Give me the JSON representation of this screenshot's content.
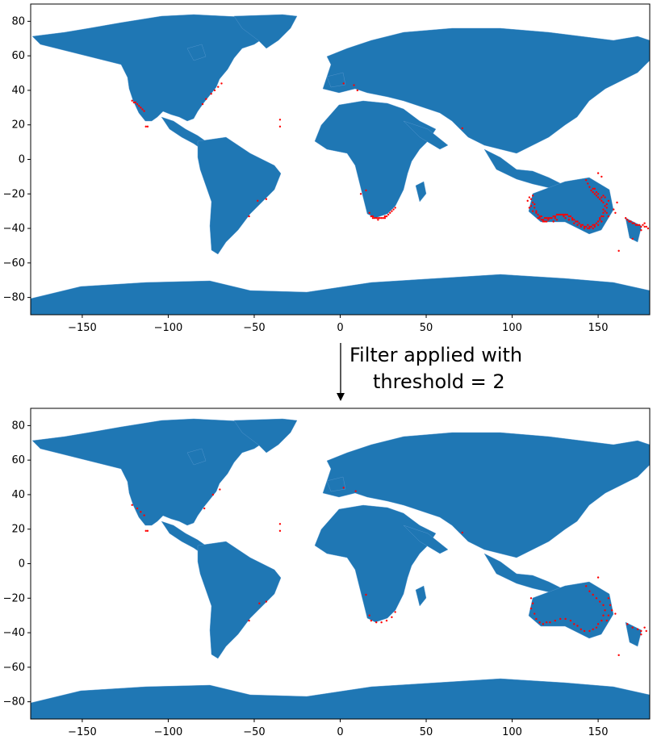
{
  "colors": {
    "land": "#1f77b4",
    "points": "#ff0000",
    "frame": "#000000"
  },
  "annotation": {
    "line1": "Filter applied with",
    "line2": "threshold = 2"
  },
  "chart_data": [
    {
      "type": "scatter",
      "title": "",
      "xlabel": "",
      "ylabel": "",
      "xlim": [
        -180,
        180
      ],
      "ylim": [
        -90,
        90
      ],
      "x_ticks": [
        "−150",
        "−100",
        "−50",
        "0",
        "50",
        "100",
        "150"
      ],
      "y_ticks": [
        "80",
        "60",
        "40",
        "20",
        "0",
        "−20",
        "−40",
        "−60",
        "−80"
      ],
      "series": [
        {
          "points": [
            [
              -121,
              34
            ],
            [
              -120,
              33
            ],
            [
              -119,
              33
            ],
            [
              -118,
              32
            ],
            [
              -117,
              31
            ],
            [
              -116,
              30
            ],
            [
              -115,
              29
            ],
            [
              -114,
              28
            ],
            [
              -113,
              19
            ],
            [
              -112,
              19
            ],
            [
              -80,
              32
            ],
            [
              -78,
              35
            ],
            [
              -75,
              38
            ],
            [
              -73,
              40
            ],
            [
              -71,
              42
            ],
            [
              -69,
              44
            ],
            [
              -35,
              23
            ],
            [
              -35,
              19
            ],
            [
              -48,
              -24
            ],
            [
              -43,
              -23
            ],
            [
              -53,
              -33
            ],
            [
              2,
              44
            ],
            [
              8,
              43
            ],
            [
              10,
              40
            ],
            [
              71,
              18
            ],
            [
              15,
              -18
            ],
            [
              12,
              -20
            ],
            [
              17,
              -31
            ],
            [
              18,
              -33
            ],
            [
              19,
              -34
            ],
            [
              20,
              -34
            ],
            [
              21,
              -34
            ],
            [
              22,
              -34
            ],
            [
              23,
              -34
            ],
            [
              24,
              -34
            ],
            [
              25,
              -34
            ],
            [
              26,
              -33
            ],
            [
              27,
              -33
            ],
            [
              28,
              -32
            ],
            [
              29,
              -31
            ],
            [
              30,
              -30
            ],
            [
              31,
              -29
            ],
            [
              32,
              -28
            ],
            [
              19,
              -33
            ],
            [
              22,
              -35
            ],
            [
              26,
              -34
            ],
            [
              150,
              -8
            ],
            [
              152,
              -10
            ],
            [
              161,
              -25
            ],
            [
              159,
              -29
            ],
            [
              160,
              -31
            ],
            [
              156,
              -33
            ],
            [
              110,
              -22
            ],
            [
              112,
              -25
            ],
            [
              113,
              -28
            ],
            [
              114,
              -30
            ],
            [
              115,
              -32
            ],
            [
              116,
              -34
            ],
            [
              117,
              -35
            ],
            [
              118,
              -35
            ],
            [
              119,
              -34
            ],
            [
              120,
              -34
            ],
            [
              121,
              -34
            ],
            [
              122,
              -34
            ],
            [
              123,
              -34
            ],
            [
              124,
              -33
            ],
            [
              125,
              -33
            ],
            [
              126,
              -32
            ],
            [
              127,
              -32
            ],
            [
              128,
              -32
            ],
            [
              129,
              -32
            ],
            [
              130,
              -32
            ],
            [
              131,
              -32
            ],
            [
              132,
              -32
            ],
            [
              133,
              -33
            ],
            [
              134,
              -33
            ],
            [
              135,
              -34
            ],
            [
              136,
              -35
            ],
            [
              137,
              -36
            ],
            [
              138,
              -36
            ],
            [
              139,
              -37
            ],
            [
              140,
              -38
            ],
            [
              141,
              -38
            ],
            [
              142,
              -39
            ],
            [
              143,
              -39
            ],
            [
              144,
              -38
            ],
            [
              145,
              -39
            ],
            [
              146,
              -39
            ],
            [
              147,
              -38
            ],
            [
              148,
              -38
            ],
            [
              149,
              -37
            ],
            [
              150,
              -36
            ],
            [
              151,
              -34
            ],
            [
              152,
              -33
            ],
            [
              153,
              -31
            ],
            [
              153,
              -29
            ],
            [
              154,
              -27
            ],
            [
              153,
              -25
            ],
            [
              152,
              -24
            ],
            [
              151,
              -23
            ],
            [
              150,
              -22
            ],
            [
              149,
              -21
            ],
            [
              148,
              -20
            ],
            [
              147,
              -19
            ],
            [
              146,
              -18
            ],
            [
              145,
              -16
            ],
            [
              144,
              -14
            ],
            [
              143,
              -12
            ],
            [
              111,
              -23
            ],
            [
              113,
              -26
            ],
            [
              116,
              -33
            ],
            [
              118,
              -36
            ],
            [
              121,
              -35
            ],
            [
              125,
              -34
            ],
            [
              130,
              -33
            ],
            [
              135,
              -35
            ],
            [
              140,
              -39
            ],
            [
              145,
              -40
            ],
            [
              148,
              -39
            ],
            [
              151,
              -35
            ],
            [
              154,
              -30
            ],
            [
              155,
              -26
            ],
            [
              152,
              -22
            ],
            [
              149,
              -19
            ],
            [
              147,
              -17
            ],
            [
              112,
              -21
            ],
            [
              111,
              -27
            ],
            [
              114,
              -31
            ],
            [
              117,
              -33
            ],
            [
              120,
              -36
            ],
            [
              126,
              -35
            ],
            [
              133,
              -35
            ],
            [
              138,
              -38
            ],
            [
              144,
              -40
            ],
            [
              150,
              -38
            ],
            [
              153,
              -33
            ],
            [
              155,
              -28
            ],
            [
              153,
              -21
            ],
            [
              150,
              -20
            ],
            [
              148,
              -17
            ],
            [
              109,
              -24
            ],
            [
              110,
              -28
            ],
            [
              112,
              -30
            ],
            [
              115,
              -34
            ],
            [
              119,
              -36
            ],
            [
              124,
              -36
            ],
            [
              131,
              -34
            ],
            [
              136,
              -37
            ],
            [
              142,
              -40
            ],
            [
              147,
              -40
            ],
            [
              152,
              -36
            ],
            [
              155,
              -31
            ],
            [
              156,
              -24
            ],
            [
              154,
              -22
            ],
            [
              166,
              -34
            ],
            [
              167,
              -35
            ],
            [
              168,
              -36
            ],
            [
              169,
              -36
            ],
            [
              170,
              -37
            ],
            [
              171,
              -37
            ],
            [
              172,
              -38
            ],
            [
              173,
              -38
            ],
            [
              174,
              -38
            ],
            [
              175,
              -39
            ],
            [
              176,
              -38
            ],
            [
              177,
              -39
            ],
            [
              178,
              -39
            ],
            [
              179,
              -40
            ],
            [
              177,
              -37
            ],
            [
              175,
              -41
            ],
            [
              170,
              -46
            ],
            [
              162,
              -53
            ]
          ]
        }
      ]
    },
    {
      "type": "scatter",
      "title": "",
      "xlabel": "",
      "ylabel": "",
      "xlim": [
        -180,
        180
      ],
      "ylim": [
        -90,
        90
      ],
      "x_ticks": [
        "−150",
        "−100",
        "−50",
        "0",
        "50",
        "100",
        "150"
      ],
      "y_ticks": [
        "80",
        "60",
        "40",
        "20",
        "0",
        "−20",
        "−40",
        "−60",
        "−80"
      ],
      "series": [
        {
          "points": [
            [
              -121,
              34
            ],
            [
              -118,
              32
            ],
            [
              -116,
              30
            ],
            [
              -114,
              28
            ],
            [
              -113,
              19
            ],
            [
              -112,
              19
            ],
            [
              -79,
              32
            ],
            [
              -74,
              40
            ],
            [
              -70,
              43
            ],
            [
              -35,
              23
            ],
            [
              -35,
              19
            ],
            [
              -47,
              -23
            ],
            [
              -43,
              -22
            ],
            [
              -53,
              -33
            ],
            [
              2,
              44
            ],
            [
              9,
              42
            ],
            [
              71,
              18
            ],
            [
              15,
              -18
            ],
            [
              17,
              -30
            ],
            [
              18,
              -33
            ],
            [
              21,
              -34
            ],
            [
              24,
              -34
            ],
            [
              27,
              -33
            ],
            [
              30,
              -31
            ],
            [
              32,
              -28
            ],
            [
              150,
              -8
            ],
            [
              111,
              -20
            ],
            [
              112,
              -23
            ],
            [
              111,
              -26
            ],
            [
              113,
              -29
            ],
            [
              114,
              -32
            ],
            [
              116,
              -34
            ],
            [
              118,
              -35
            ],
            [
              120,
              -34
            ],
            [
              122,
              -34
            ],
            [
              125,
              -33
            ],
            [
              128,
              -32
            ],
            [
              131,
              -32
            ],
            [
              134,
              -33
            ],
            [
              136,
              -35
            ],
            [
              138,
              -36
            ],
            [
              140,
              -38
            ],
            [
              142,
              -39
            ],
            [
              145,
              -39
            ],
            [
              147,
              -38
            ],
            [
              149,
              -37
            ],
            [
              150,
              -35
            ],
            [
              152,
              -33
            ],
            [
              153,
              -30
            ],
            [
              154,
              -27
            ],
            [
              153,
              -24
            ],
            [
              151,
              -22
            ],
            [
              149,
              -20
            ],
            [
              147,
              -18
            ],
            [
              145,
              -16
            ],
            [
              143,
              -13
            ],
            [
              156,
              -20
            ],
            [
              157,
              -24
            ],
            [
              158,
              -27
            ],
            [
              160,
              -29
            ],
            [
              156,
              -30
            ],
            [
              155,
              -33
            ],
            [
              167,
              -35
            ],
            [
              170,
              -37
            ],
            [
              173,
              -38
            ],
            [
              175,
              -39
            ],
            [
              178,
              -39
            ],
            [
              177,
              -37
            ],
            [
              175,
              -41
            ],
            [
              162,
              -53
            ]
          ]
        }
      ]
    }
  ]
}
